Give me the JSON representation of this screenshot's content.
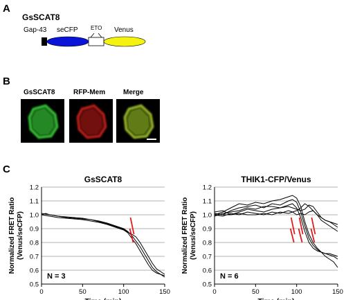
{
  "panels": {
    "a": {
      "letter": "A",
      "construct_name": "GsSCAT8",
      "labels": {
        "gap43": "Gap-43",
        "secfp": "seCFP",
        "eto": "ETO",
        "venus": "Venus"
      },
      "colors": {
        "gap43": "#000000",
        "secfp": "#0a14d8",
        "eto": "#ffffff",
        "venus": "#f4f20e"
      }
    },
    "b": {
      "letter": "B",
      "images": [
        {
          "label": "GsSCAT8",
          "color": "#3bd43b"
        },
        {
          "label": "RFP-Mem",
          "color": "#d4201c"
        },
        {
          "label": "Merge",
          "color": "#a8c830"
        }
      ]
    },
    "c": {
      "letter": "C"
    }
  },
  "chart_data": [
    {
      "type": "line",
      "title": "GsSCAT8",
      "xlabel": "Time (min)",
      "ylabel": "Normalized FRET Ratio (Venus/seCFP)",
      "xlim": [
        0,
        150
      ],
      "ylim": [
        0.5,
        1.2
      ],
      "xticks": [
        "0",
        "50",
        "100",
        "150"
      ],
      "yticks": [
        "0.5",
        "0.6",
        "0.7",
        "0.8",
        "0.9",
        "1.0",
        "1.1",
        "1.2"
      ],
      "grid": "horizontal",
      "annotation": "N = 3",
      "marker_x": 110,
      "series": [
        {
          "x": [
            0,
            5,
            10,
            20,
            30,
            40,
            50,
            60,
            70,
            80,
            90,
            100,
            105,
            110,
            115,
            120,
            125,
            130,
            135,
            140,
            145,
            150
          ],
          "values": [
            1.0,
            1.01,
            1.0,
            0.99,
            0.98,
            0.975,
            0.97,
            0.965,
            0.955,
            0.94,
            0.92,
            0.9,
            0.88,
            0.85,
            0.81,
            0.77,
            0.72,
            0.67,
            0.62,
            0.59,
            0.57,
            0.55
          ]
        },
        {
          "x": [
            0,
            5,
            10,
            20,
            30,
            40,
            50,
            60,
            70,
            80,
            90,
            100,
            105,
            110,
            115,
            120,
            125,
            130,
            135,
            140,
            145,
            150
          ],
          "values": [
            1.0,
            0.995,
            0.99,
            0.98,
            0.975,
            0.97,
            0.965,
            0.955,
            0.945,
            0.93,
            0.91,
            0.89,
            0.87,
            0.83,
            0.79,
            0.74,
            0.69,
            0.64,
            0.6,
            0.58,
            0.57,
            0.56
          ]
        },
        {
          "x": [
            0,
            5,
            10,
            20,
            30,
            40,
            50,
            60,
            70,
            80,
            90,
            100,
            105,
            110,
            115,
            120,
            125,
            130,
            135,
            140,
            145,
            150
          ],
          "values": [
            1.01,
            1.005,
            1.0,
            0.99,
            0.985,
            0.98,
            0.975,
            0.965,
            0.95,
            0.935,
            0.915,
            0.895,
            0.875,
            0.86,
            0.84,
            0.8,
            0.75,
            0.7,
            0.65,
            0.61,
            0.59,
            0.57
          ]
        }
      ]
    },
    {
      "type": "line",
      "title": "THIK1-CFP/Venus",
      "xlabel": "Time (min)",
      "ylabel": "Normalized FRET Ratio (Venus/seCFP)",
      "xlim": [
        0,
        150
      ],
      "ylim": [
        0.5,
        1.2
      ],
      "xticks": [
        "0",
        "50",
        "100",
        "150"
      ],
      "yticks": [
        "0.5",
        "0.6",
        "0.7",
        "0.8",
        "0.9",
        "1.0",
        "1.1",
        "1.2"
      ],
      "grid": "horizontal",
      "annotation": "N = 6",
      "marker_x": [
        95,
        105,
        120
      ],
      "series": [
        {
          "x": [
            0,
            10,
            20,
            30,
            40,
            50,
            60,
            70,
            80,
            90,
            95,
            100,
            105,
            110,
            115,
            120,
            125,
            130,
            135,
            140,
            145,
            150
          ],
          "values": [
            1.0,
            1.02,
            1.05,
            1.08,
            1.07,
            1.09,
            1.08,
            1.1,
            1.11,
            1.13,
            1.14,
            1.12,
            1.06,
            0.95,
            0.86,
            0.8,
            0.76,
            0.73,
            0.7,
            0.68,
            0.66,
            0.62
          ]
        },
        {
          "x": [
            0,
            10,
            20,
            30,
            40,
            50,
            60,
            70,
            80,
            90,
            95,
            100,
            105,
            110,
            115,
            120,
            125,
            130,
            135,
            140,
            145,
            150
          ],
          "values": [
            1.01,
            1.0,
            1.03,
            1.05,
            1.06,
            1.07,
            1.05,
            1.08,
            1.07,
            1.1,
            1.11,
            1.09,
            1.02,
            0.92,
            0.83,
            0.78,
            0.75,
            0.73,
            0.72,
            0.71,
            0.7,
            0.68
          ]
        },
        {
          "x": [
            0,
            10,
            20,
            30,
            40,
            50,
            60,
            70,
            80,
            90,
            95,
            100,
            105,
            110,
            115,
            120,
            125,
            130,
            135,
            140,
            145,
            150
          ],
          "values": [
            0.99,
            1.01,
            1.02,
            1.03,
            1.05,
            1.04,
            1.06,
            1.06,
            1.05,
            1.07,
            1.08,
            1.05,
            0.98,
            0.88,
            0.8,
            0.76,
            0.74,
            0.73,
            0.72,
            0.72,
            0.71,
            0.7
          ]
        },
        {
          "x": [
            0,
            10,
            20,
            30,
            40,
            50,
            60,
            70,
            80,
            90,
            95,
            100,
            105,
            110,
            115,
            120,
            125,
            130,
            135,
            140,
            145,
            150
          ],
          "values": [
            1.02,
            1.03,
            1.0,
            1.02,
            1.04,
            1.03,
            1.02,
            1.04,
            1.05,
            1.06,
            1.05,
            1.04,
            1.03,
            1.04,
            1.07,
            1.06,
            1.02,
            0.98,
            0.96,
            0.95,
            0.93,
            0.91
          ]
        },
        {
          "x": [
            0,
            10,
            20,
            30,
            40,
            50,
            60,
            70,
            80,
            90,
            95,
            100,
            105,
            110,
            115,
            120,
            125,
            130,
            135,
            140,
            145,
            150
          ],
          "values": [
            1.0,
            0.99,
            1.01,
            1.0,
            1.02,
            1.01,
            1.0,
            1.02,
            1.01,
            1.03,
            1.02,
            1.0,
            1.01,
            1.0,
            1.02,
            1.03,
            1.0,
            0.96,
            0.94,
            0.92,
            0.9,
            0.88
          ]
        },
        {
          "x": [
            0,
            10,
            20,
            30,
            40,
            50,
            60,
            70,
            80,
            90,
            95,
            100,
            105,
            110,
            115,
            120,
            125,
            130,
            135,
            140,
            145,
            150
          ],
          "values": [
            1.01,
            1.0,
            1.0,
            1.01,
            1.0,
            1.0,
            1.01,
            1.0,
            1.02,
            1.01,
            1.02,
            1.03,
            1.05,
            1.08,
            1.06,
            1.03,
            1.0,
            0.98,
            0.96,
            0.95,
            0.94,
            0.93
          ]
        }
      ]
    }
  ]
}
